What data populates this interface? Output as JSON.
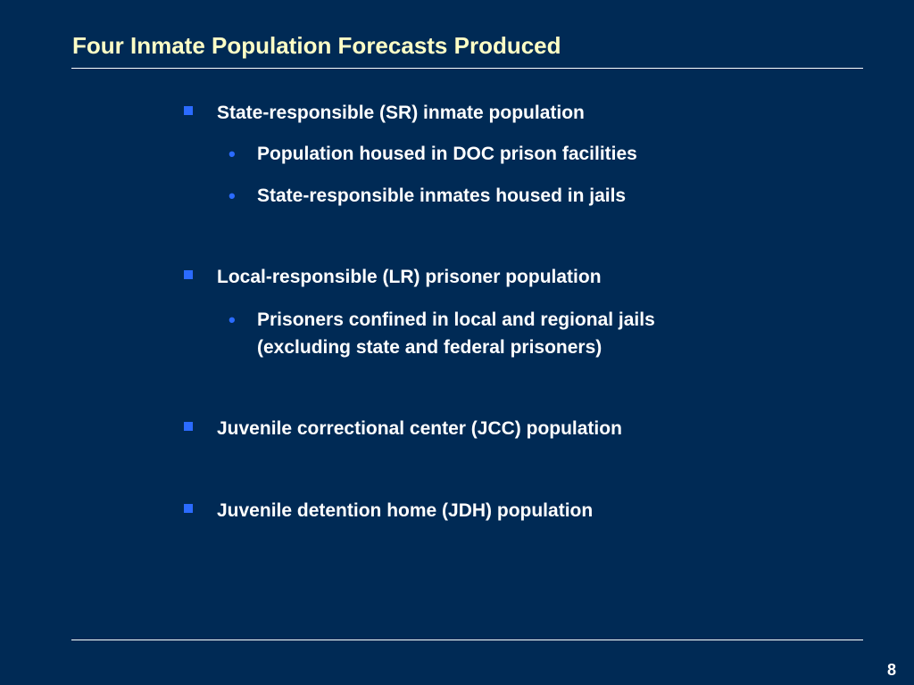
{
  "slide": {
    "title": "Four Inmate Population Forecasts Produced",
    "page_number": "8",
    "colors": {
      "background": "#002a55",
      "title": "#ffffc6",
      "bullet_marker": "#2b6bff",
      "text": "#ffffff"
    },
    "bullets": [
      {
        "text": "State-responsible (SR) inmate population",
        "sub": [
          "Population housed in DOC prison facilities",
          "State-responsible inmates housed in jails"
        ]
      },
      {
        "text": "Local-responsible (LR) prisoner population",
        "sub": [
          "Prisoners confined in local and regional jails",
          "(excluding state and federal prisoners)"
        ]
      },
      {
        "text": "Juvenile correctional center (JCC) population",
        "sub": []
      },
      {
        "text": "Juvenile detention home (JDH) population",
        "sub": []
      }
    ]
  }
}
